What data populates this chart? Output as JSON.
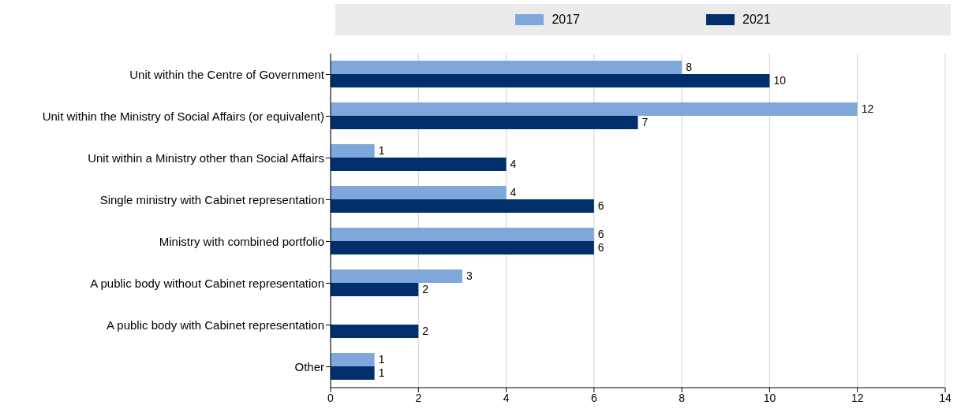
{
  "chart_data": {
    "type": "bar",
    "orientation": "horizontal",
    "categories": [
      "Unit within the Centre of Government",
      "Unit within the Ministry of Social Affairs (or equivalent)",
      "Unit within a Ministry other than Social Affairs",
      "Single ministry with Cabinet representation",
      "Ministry with combined portfolio",
      "A public body without Cabinet representation",
      "A public body with Cabinet representation",
      "Other"
    ],
    "series": [
      {
        "name": "2017",
        "color": "#7fa7d9",
        "values": [
          8,
          12,
          1,
          4,
          6,
          3,
          null,
          1
        ]
      },
      {
        "name": "2021",
        "color": "#002f6c",
        "values": [
          10,
          7,
          4,
          6,
          6,
          2,
          2,
          1
        ]
      }
    ],
    "xlim": [
      0,
      14
    ],
    "xticks": [
      0,
      2,
      4,
      6,
      8,
      10,
      12,
      14
    ],
    "grid": "x",
    "legend": "top",
    "data_labels": true
  }
}
